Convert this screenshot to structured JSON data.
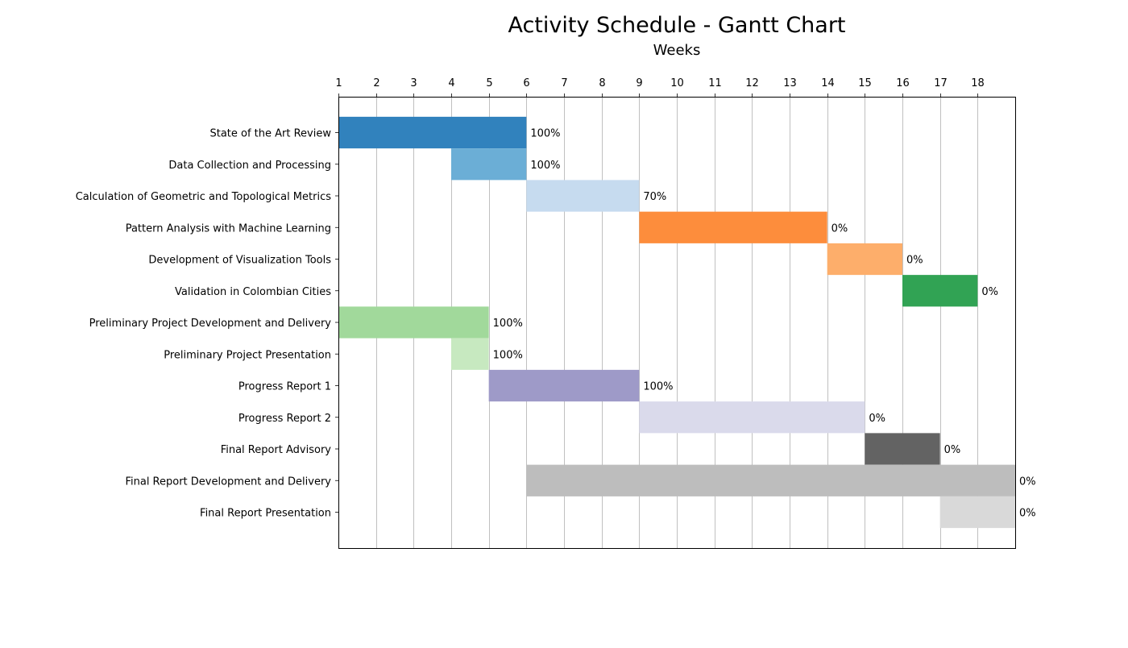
{
  "chart_data": {
    "type": "gantt",
    "title": "Activity Schedule - Gantt Chart",
    "xlabel": "Weeks",
    "ylabel": "",
    "xlim": [
      1,
      19
    ],
    "x_ticks": [
      1,
      2,
      3,
      4,
      5,
      6,
      7,
      8,
      9,
      10,
      11,
      12,
      13,
      14,
      15,
      16,
      17,
      18
    ],
    "x_axis_position": "top",
    "grid": "vertical",
    "tasks": [
      {
        "name": "State of the Art Review",
        "start": 1,
        "end": 6,
        "progress": "100%",
        "color": "#3182bd"
      },
      {
        "name": "Data Collection and Processing",
        "start": 4,
        "end": 6,
        "progress": "100%",
        "color": "#6baed6"
      },
      {
        "name": "Calculation of Geometric and Topological Metrics",
        "start": 6,
        "end": 9,
        "progress": "70%",
        "color": "#c6dbef"
      },
      {
        "name": "Pattern Analysis with Machine Learning",
        "start": 9,
        "end": 14,
        "progress": "0%",
        "color": "#fd8d3c"
      },
      {
        "name": "Development of Visualization Tools",
        "start": 14,
        "end": 16,
        "progress": "0%",
        "color": "#fdae6b"
      },
      {
        "name": "Validation in Colombian Cities",
        "start": 16,
        "end": 18,
        "progress": "0%",
        "color": "#31a354"
      },
      {
        "name": "Preliminary Project Development and Delivery",
        "start": 1,
        "end": 5,
        "progress": "100%",
        "color": "#a1d99b"
      },
      {
        "name": "Preliminary Project Presentation",
        "start": 4,
        "end": 5,
        "progress": "100%",
        "color": "#c7e9c0"
      },
      {
        "name": "Progress Report 1",
        "start": 5,
        "end": 9,
        "progress": "100%",
        "color": "#9e9ac8"
      },
      {
        "name": "Progress Report 2",
        "start": 9,
        "end": 15,
        "progress": "0%",
        "color": "#dadaeb"
      },
      {
        "name": "Final Report Advisory",
        "start": 15,
        "end": 17,
        "progress": "0%",
        "color": "#636363"
      },
      {
        "name": "Final Report Development and Delivery",
        "start": 6,
        "end": 19,
        "progress": "0%",
        "color": "#bdbdbd"
      },
      {
        "name": "Final Report Presentation",
        "start": 17,
        "end": 19,
        "progress": "0%",
        "color": "#d9d9d9"
      }
    ]
  }
}
